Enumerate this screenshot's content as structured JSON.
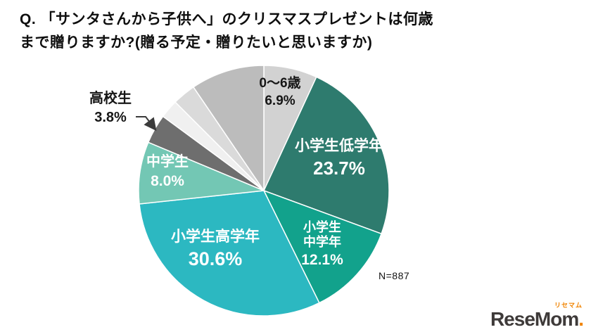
{
  "title": {
    "line1": "Q. 「サンタさんから子供へ」のクリスマスプレゼントは何歳",
    "line2": "まで贈りますか?(贈る予定・贈りたいと思いますか)"
  },
  "logo": {
    "wordmark": "ReseMom",
    "period": ".",
    "ruby": "リセマム",
    "accent_color": "#f08300",
    "text_color": "#3e3a39"
  },
  "chart_data": {
    "type": "pie",
    "title": "「サンタさんから子供へ」のクリスマスプレゼントは何歳まで贈りますか?(贈る予定・贈りたいと思いますか)",
    "sample_note": "N=887",
    "start_angle_deg": 0,
    "direction": "clockwise",
    "slices": [
      {
        "name": "age-0-6",
        "label_lines": [
          "0〜6歳"
        ],
        "pct": "6.9%",
        "value": 6.9,
        "color": "#d2d2d2",
        "text_color": "#161616"
      },
      {
        "name": "elementary-lower",
        "label_lines": [
          "小学生低学年"
        ],
        "pct": "23.7%",
        "value": 23.7,
        "color": "#2e7b6e",
        "text_color": "#ffffff"
      },
      {
        "name": "elementary-middle",
        "label_lines": [
          "小学生",
          "中学年"
        ],
        "pct": "12.1%",
        "value": 12.1,
        "color": "#12a28c",
        "text_color": "#ffffff"
      },
      {
        "name": "elementary-upper",
        "label_lines": [
          "小学生高学年"
        ],
        "pct": "30.6%",
        "value": 30.6,
        "color": "#2cb8c1",
        "text_color": "#ffffff"
      },
      {
        "name": "junior-high",
        "label_lines": [
          "中学生"
        ],
        "pct": "8.0%",
        "value": 8.0,
        "color": "#73c7b4",
        "text_color": "#ffffff"
      },
      {
        "name": "high-school",
        "label_lines": [
          "高校生"
        ],
        "pct": "3.8%",
        "value": 3.8,
        "color": "#6e6e6e",
        "text_color": "#161616"
      },
      {
        "name": "unlabeled-1",
        "label_lines": [],
        "pct": "",
        "value": 2.4,
        "color": "#f0f0f0"
      },
      {
        "name": "unlabeled-2",
        "label_lines": [],
        "pct": "",
        "value": 3.0,
        "color": "#dadada"
      },
      {
        "name": "unlabeled-3",
        "label_lines": [],
        "pct": "",
        "value": 9.5,
        "color": "#bcbcbc"
      }
    ]
  }
}
